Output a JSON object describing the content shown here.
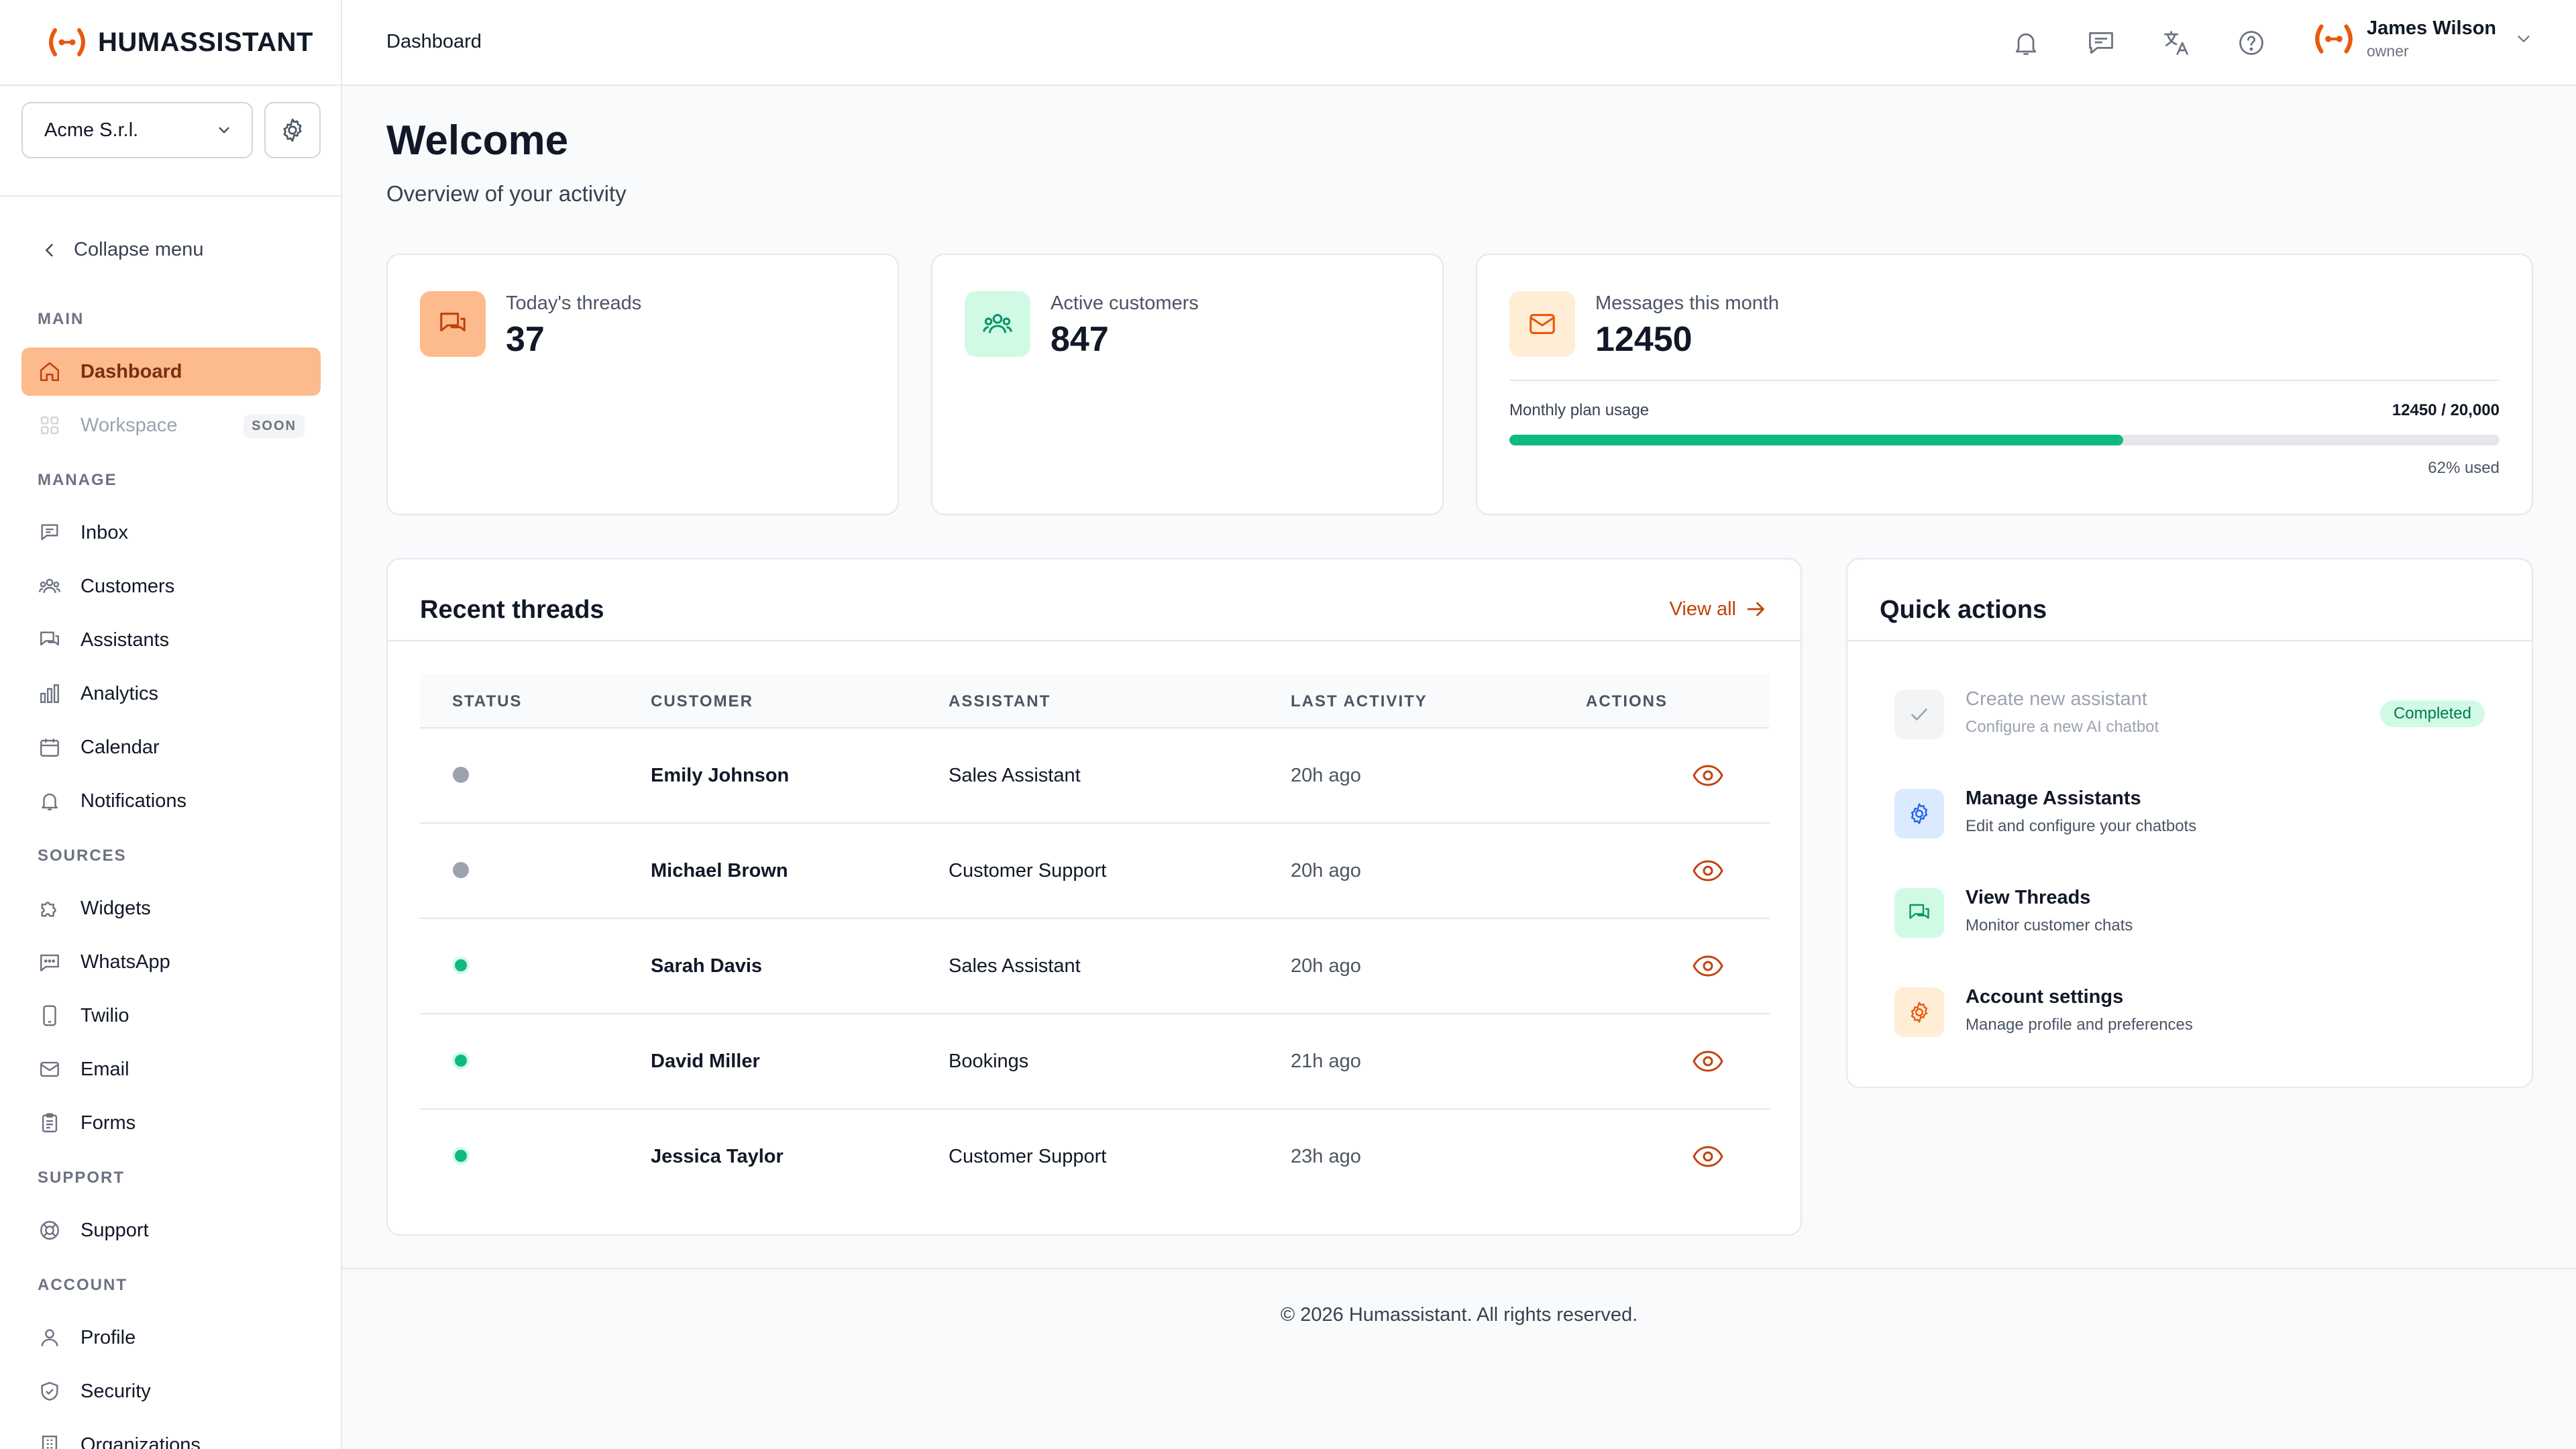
{
  "brand": {
    "name": "HUMASSISTANT",
    "accent": "#ea580c",
    "success": "#10b981"
  },
  "org": {
    "selected": "Acme S.r.l."
  },
  "sidebar": {
    "collapse_label": "Collapse menu",
    "sections": {
      "main": "MAIN",
      "manage": "MANAGE",
      "sources": "SOURCES",
      "support": "SUPPORT",
      "account": "ACCOUNT"
    },
    "items": {
      "dashboard": "Dashboard",
      "workspace": "Workspace",
      "workspace_badge": "SOON",
      "inbox": "Inbox",
      "customers": "Customers",
      "assistants": "Assistants",
      "analytics": "Analytics",
      "calendar": "Calendar",
      "notifications": "Notifications",
      "widgets": "Widgets",
      "whatsapp": "WhatsApp",
      "twilio": "Twilio",
      "email": "Email",
      "forms": "Forms",
      "support": "Support",
      "profile": "Profile",
      "security": "Security",
      "organizations": "Organizations"
    }
  },
  "header": {
    "breadcrumb": "Dashboard",
    "user": {
      "name": "James Wilson",
      "role": "owner"
    }
  },
  "page": {
    "title": "Welcome",
    "subtitle": "Overview of your activity"
  },
  "stats": {
    "threads": {
      "label": "Today's threads",
      "value": "37"
    },
    "customers": {
      "label": "Active customers",
      "value": "847"
    },
    "messages": {
      "label": "Messages this month",
      "value": "12450",
      "usage_label": "Monthly plan usage",
      "usage_count": "12450 / 20,000",
      "usage_fraction": 0.62,
      "usage_pct": "62% used"
    }
  },
  "recent_threads": {
    "title": "Recent threads",
    "view_all": "View all",
    "columns": [
      "STATUS",
      "CUSTOMER",
      "ASSISTANT",
      "LAST ACTIVITY",
      "ACTIONS"
    ],
    "rows": [
      {
        "status": "inactive",
        "customer": "Emily Johnson",
        "assistant": "Sales Assistant",
        "last": "20h ago"
      },
      {
        "status": "inactive",
        "customer": "Michael Brown",
        "assistant": "Customer Support",
        "last": "20h ago"
      },
      {
        "status": "active",
        "customer": "Sarah Davis",
        "assistant": "Sales Assistant",
        "last": "20h ago"
      },
      {
        "status": "active",
        "customer": "David Miller",
        "assistant": "Bookings",
        "last": "21h ago"
      },
      {
        "status": "active",
        "customer": "Jessica Taylor",
        "assistant": "Customer Support",
        "last": "23h ago"
      }
    ]
  },
  "quick_actions": {
    "title": "Quick actions",
    "items": [
      {
        "title": "Create new assistant",
        "subtitle": "Configure a new AI chatbot",
        "badge": "Completed",
        "icon": "check-icon"
      },
      {
        "title": "Manage Assistants",
        "subtitle": "Edit and configure your chatbots",
        "icon": "gear-icon"
      },
      {
        "title": "View Threads",
        "subtitle": "Monitor customer chats",
        "icon": "chat-icon"
      },
      {
        "title": "Account settings",
        "subtitle": "Manage profile and preferences",
        "icon": "gear-icon"
      }
    ]
  },
  "footer": {
    "text": "© 2026 Humassistant. All rights reserved."
  }
}
